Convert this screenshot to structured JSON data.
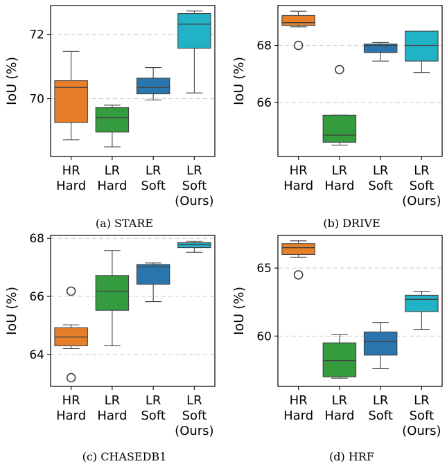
{
  "chart_data": [
    {
      "type": "box",
      "caption": "(a) STARE",
      "ylabel": "IoU (%)",
      "ylim": [
        68.2,
        72.9
      ],
      "yticks": [
        70,
        72
      ],
      "categories": [
        [
          "HR",
          "Hard"
        ],
        [
          "LR",
          "Hard"
        ],
        [
          "LR",
          "Soft"
        ],
        [
          "LR",
          "Soft",
          "(Ours)"
        ]
      ],
      "boxes": [
        {
          "min": 68.72,
          "q1": 69.26,
          "median": 70.35,
          "q3": 70.56,
          "max": 71.47,
          "outliers": []
        },
        {
          "min": 68.5,
          "q1": 68.96,
          "median": 69.41,
          "q3": 69.72,
          "max": 69.8,
          "outliers": []
        },
        {
          "min": 69.96,
          "q1": 70.15,
          "median": 70.35,
          "q3": 70.64,
          "max": 70.97,
          "outliers": []
        },
        {
          "min": 70.18,
          "q1": 71.57,
          "median": 72.32,
          "q3": 72.65,
          "max": 72.73,
          "outliers": []
        }
      ]
    },
    {
      "type": "box",
      "caption": "(b) DRIVE",
      "ylabel": "IoU (%)",
      "ylim": [
        64.1,
        69.4
      ],
      "yticks": [
        66,
        68
      ],
      "categories": [
        [
          "HR",
          "Hard"
        ],
        [
          "LR",
          "Hard"
        ],
        [
          "LR",
          "Soft"
        ],
        [
          "LR",
          "Soft",
          "(Ours)"
        ]
      ],
      "boxes": [
        {
          "min": 68.65,
          "q1": 68.7,
          "median": 68.8,
          "q3": 69.05,
          "max": 69.2,
          "outliers": [
            68.0
          ]
        },
        {
          "min": 64.5,
          "q1": 64.6,
          "median": 64.85,
          "q3": 65.55,
          "max": 65.55,
          "outliers": [
            67.15
          ]
        },
        {
          "min": 67.45,
          "q1": 67.75,
          "median": 68.0,
          "q3": 68.05,
          "max": 68.1,
          "outliers": []
        },
        {
          "min": 67.05,
          "q1": 67.45,
          "median": 68.0,
          "q3": 68.5,
          "max": 68.5,
          "outliers": []
        }
      ]
    },
    {
      "type": "box",
      "caption": "(c) CHASEDB1",
      "ylabel": "IoU (%)",
      "ylim": [
        62.9,
        68.1
      ],
      "yticks": [
        64,
        66,
        68
      ],
      "categories": [
        [
          "HR",
          "Hard"
        ],
        [
          "LR",
          "Hard"
        ],
        [
          "LR",
          "Soft"
        ],
        [
          "LR",
          "Soft",
          "(Ours)"
        ]
      ],
      "boxes": [
        {
          "min": 64.2,
          "q1": 64.3,
          "median": 64.6,
          "q3": 64.92,
          "max": 65.02,
          "outliers": [
            66.18,
            63.2
          ]
        },
        {
          "min": 64.3,
          "q1": 65.52,
          "median": 66.18,
          "q3": 66.72,
          "max": 67.58,
          "outliers": []
        },
        {
          "min": 65.82,
          "q1": 66.42,
          "median": 67.02,
          "q3": 67.1,
          "max": 67.15,
          "outliers": []
        },
        {
          "min": 67.52,
          "q1": 67.68,
          "median": 67.78,
          "q3": 67.85,
          "max": 67.9,
          "outliers": []
        }
      ]
    },
    {
      "type": "box",
      "caption": "(d) HRF",
      "ylabel": "IoU (%)",
      "ylim": [
        56.3,
        67.4
      ],
      "yticks": [
        60,
        65
      ],
      "categories": [
        [
          "HR",
          "Hard"
        ],
        [
          "LR",
          "Hard"
        ],
        [
          "LR",
          "Soft"
        ],
        [
          "LR",
          "Soft",
          "(Ours)"
        ]
      ],
      "boxes": [
        {
          "min": 65.8,
          "q1": 66.0,
          "median": 66.5,
          "q3": 66.8,
          "max": 67.0,
          "outliers": [
            64.5
          ]
        },
        {
          "min": 56.9,
          "q1": 57.0,
          "median": 58.2,
          "q3": 59.5,
          "max": 60.1,
          "outliers": []
        },
        {
          "min": 57.6,
          "q1": 58.6,
          "median": 59.6,
          "q3": 60.3,
          "max": 61.0,
          "outliers": []
        },
        {
          "min": 60.5,
          "q1": 61.8,
          "median": 62.7,
          "q3": 63.0,
          "max": 63.3,
          "outliers": []
        }
      ]
    }
  ],
  "colors": [
    "#e67f28",
    "#349b3f",
    "#2b75ae",
    "#22b2c6"
  ]
}
